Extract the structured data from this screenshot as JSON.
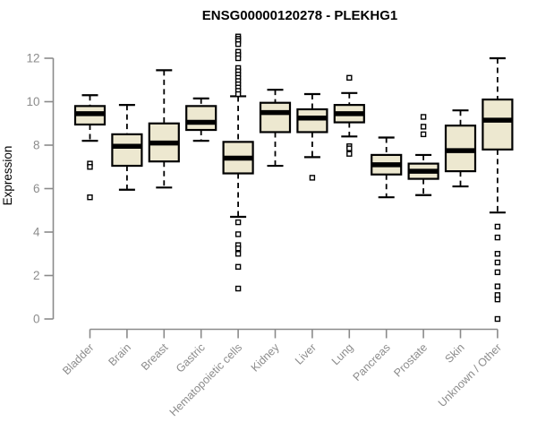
{
  "chart_data": {
    "type": "boxplot",
    "title": "ENSG00000120278 - PLEKHG1",
    "ylabel": "Expression",
    "xlabel": "",
    "ylim": [
      0,
      12
    ],
    "yticks": [
      0,
      2,
      4,
      6,
      8,
      10,
      12
    ],
    "grid": false,
    "legend": "none",
    "categories": [
      "Bladder",
      "Brain",
      "Breast",
      "Gastric",
      "Hematopoietic cells",
      "Kidney",
      "Liver",
      "Lung",
      "Pancreas",
      "Prostate",
      "Skin",
      "Unknown / Other"
    ],
    "series": [
      {
        "name": "Bladder",
        "whislo": 8.2,
        "q1": 8.95,
        "med": 9.45,
        "q3": 9.8,
        "whishi": 10.3,
        "outliers": [
          7.15,
          7.0,
          5.6
        ]
      },
      {
        "name": "Brain",
        "whislo": 5.95,
        "q1": 7.05,
        "med": 7.95,
        "q3": 8.5,
        "whishi": 9.85,
        "outliers": []
      },
      {
        "name": "Breast",
        "whislo": 6.05,
        "q1": 7.25,
        "med": 8.1,
        "q3": 9.0,
        "whishi": 11.45,
        "outliers": []
      },
      {
        "name": "Gastric",
        "whislo": 8.2,
        "q1": 8.7,
        "med": 9.05,
        "q3": 9.8,
        "whishi": 10.15,
        "outliers": []
      },
      {
        "name": "Hematopoietic cells",
        "whislo": 4.7,
        "q1": 6.7,
        "med": 7.4,
        "q3": 8.15,
        "whishi": 10.25,
        "outliers": [
          13.0,
          12.9,
          12.8,
          12.65,
          12.3,
          12.15,
          12.0,
          11.55,
          11.4,
          11.25,
          11.1,
          10.95,
          10.8,
          10.65,
          10.5,
          10.35,
          4.45,
          3.9,
          3.4,
          3.25,
          3.0,
          2.4,
          1.4
        ]
      },
      {
        "name": "Kidney",
        "whislo": 7.05,
        "q1": 8.6,
        "med": 9.5,
        "q3": 9.95,
        "whishi": 10.55,
        "outliers": []
      },
      {
        "name": "Liver",
        "whislo": 7.45,
        "q1": 8.6,
        "med": 9.25,
        "q3": 9.65,
        "whishi": 10.35,
        "outliers": [
          6.5
        ]
      },
      {
        "name": "Lung",
        "whislo": 8.4,
        "q1": 9.05,
        "med": 9.45,
        "q3": 9.85,
        "whishi": 10.4,
        "outliers": [
          11.1,
          7.95,
          7.85,
          7.6
        ]
      },
      {
        "name": "Pancreas",
        "whislo": 5.6,
        "q1": 6.65,
        "med": 7.1,
        "q3": 7.55,
        "whishi": 8.35,
        "outliers": []
      },
      {
        "name": "Prostate",
        "whislo": 5.7,
        "q1": 6.45,
        "med": 6.8,
        "q3": 7.15,
        "whishi": 7.55,
        "outliers": [
          9.3,
          8.85,
          8.5
        ]
      },
      {
        "name": "Skin",
        "whislo": 6.1,
        "q1": 6.8,
        "med": 7.75,
        "q3": 8.9,
        "whishi": 9.6,
        "outliers": []
      },
      {
        "name": "Unknown / Other",
        "whislo": 4.9,
        "q1": 7.8,
        "med": 9.15,
        "q3": 10.1,
        "whishi": 12.0,
        "outliers": [
          4.25,
          3.75,
          3.0,
          2.6,
          2.15,
          1.5,
          1.1,
          0.9,
          0.0
        ]
      }
    ],
    "colors": {
      "box_fill": "#EDE8D0",
      "box_border": "#000000",
      "median": "#000000",
      "whisker": "#000000",
      "outlier_fill": "#ffffff",
      "axis": "#8A8A8A",
      "tick_label": "#8C8C8C",
      "title": "#000000",
      "background": "#FFFFFF"
    }
  }
}
